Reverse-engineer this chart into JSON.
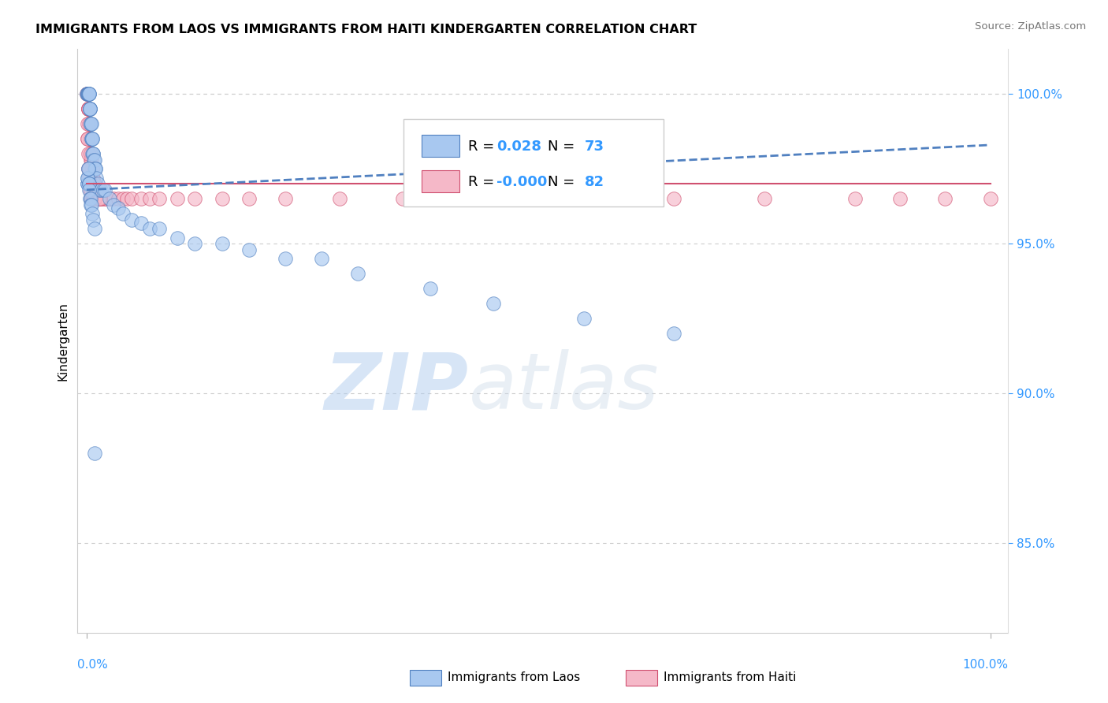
{
  "title": "IMMIGRANTS FROM LAOS VS IMMIGRANTS FROM HAITI KINDERGARTEN CORRELATION CHART",
  "source": "Source: ZipAtlas.com",
  "ylabel": "Kindergarten",
  "color_laos": "#A8C8F0",
  "color_haiti": "#F5B8C8",
  "trendline_color_laos": "#5080C0",
  "trendline_color_haiti": "#D05070",
  "background_color": "#ffffff",
  "xlim": [
    -1.0,
    102.0
  ],
  "ylim": [
    82.0,
    101.5
  ],
  "yticks": [
    85.0,
    90.0,
    95.0,
    100.0
  ],
  "ytick_labels": [
    "85.0%",
    "90.0%",
    "95.0%",
    "100.0%"
  ],
  "laos_x": [
    0.05,
    0.08,
    0.1,
    0.12,
    0.15,
    0.18,
    0.2,
    0.22,
    0.25,
    0.28,
    0.3,
    0.32,
    0.35,
    0.38,
    0.4,
    0.42,
    0.45,
    0.48,
    0.5,
    0.52,
    0.55,
    0.58,
    0.6,
    0.65,
    0.7,
    0.75,
    0.8,
    0.85,
    0.9,
    0.95,
    1.0,
    1.1,
    1.2,
    1.4,
    1.6,
    1.8,
    2.0,
    2.5,
    3.0,
    3.5,
    4.0,
    5.0,
    6.0,
    7.0,
    8.0,
    10.0,
    12.0,
    15.0,
    18.0,
    22.0,
    26.0,
    30.0,
    38.0,
    45.0,
    55.0,
    65.0,
    0.06,
    0.09,
    0.11,
    0.14,
    0.17,
    0.21,
    0.24,
    0.27,
    0.31,
    0.36,
    0.41,
    0.46,
    0.51,
    0.62,
    0.72,
    0.88,
    0.92
  ],
  "laos_y": [
    100.0,
    100.0,
    100.0,
    100.0,
    100.0,
    100.0,
    100.0,
    100.0,
    100.0,
    100.0,
    100.0,
    99.5,
    99.5,
    99.5,
    99.5,
    99.0,
    99.0,
    99.0,
    99.0,
    98.5,
    98.5,
    98.5,
    98.5,
    98.0,
    98.0,
    98.0,
    97.8,
    97.8,
    97.5,
    97.5,
    97.5,
    97.2,
    97.0,
    96.8,
    96.8,
    96.8,
    96.8,
    96.5,
    96.3,
    96.2,
    96.0,
    95.8,
    95.7,
    95.5,
    95.5,
    95.2,
    95.0,
    95.0,
    94.8,
    94.5,
    94.5,
    94.0,
    93.5,
    93.0,
    92.5,
    92.0,
    97.0,
    97.0,
    97.2,
    97.2,
    97.5,
    97.5,
    97.0,
    97.0,
    96.8,
    96.5,
    96.5,
    96.3,
    96.3,
    96.0,
    95.8,
    95.5,
    88.0
  ],
  "haiti_x": [
    0.05,
    0.08,
    0.1,
    0.12,
    0.15,
    0.18,
    0.2,
    0.22,
    0.25,
    0.28,
    0.3,
    0.32,
    0.35,
    0.38,
    0.4,
    0.42,
    0.45,
    0.48,
    0.5,
    0.55,
    0.6,
    0.65,
    0.7,
    0.75,
    0.8,
    0.85,
    0.9,
    0.95,
    1.0,
    1.1,
    1.2,
    1.4,
    1.6,
    1.8,
    2.0,
    2.2,
    2.5,
    3.0,
    3.5,
    4.0,
    4.5,
    5.0,
    6.0,
    7.0,
    8.0,
    10.0,
    12.0,
    15.0,
    18.0,
    22.0,
    28.0,
    35.0,
    45.0,
    55.0,
    65.0,
    75.0,
    85.0,
    90.0,
    95.0,
    100.0,
    0.07,
    0.11,
    0.14,
    0.17,
    0.21,
    0.24,
    0.27,
    0.31,
    0.36,
    0.41,
    0.46,
    0.51,
    0.56,
    0.62,
    0.68,
    0.72,
    0.78,
    0.88,
    0.92,
    1.05,
    1.3,
    1.5
  ],
  "haiti_y": [
    100.0,
    100.0,
    100.0,
    100.0,
    99.5,
    99.5,
    99.5,
    99.5,
    99.0,
    99.0,
    99.0,
    98.5,
    98.5,
    98.5,
    98.0,
    98.0,
    98.0,
    97.8,
    97.8,
    97.5,
    97.5,
    97.5,
    97.2,
    97.2,
    97.0,
    97.0,
    97.0,
    96.8,
    96.8,
    96.8,
    96.5,
    96.5,
    96.5,
    96.5,
    96.5,
    96.5,
    96.5,
    96.5,
    96.5,
    96.5,
    96.5,
    96.5,
    96.5,
    96.5,
    96.5,
    96.5,
    96.5,
    96.5,
    96.5,
    96.5,
    96.5,
    96.5,
    96.5,
    96.5,
    96.5,
    96.5,
    96.5,
    96.5,
    96.5,
    96.5,
    99.0,
    98.5,
    98.5,
    98.0,
    97.5,
    97.5,
    97.2,
    97.0,
    96.8,
    96.8,
    96.5,
    96.5,
    96.5,
    96.5,
    96.5,
    96.5,
    96.5,
    96.5,
    96.5,
    96.8,
    96.5,
    96.5
  ]
}
